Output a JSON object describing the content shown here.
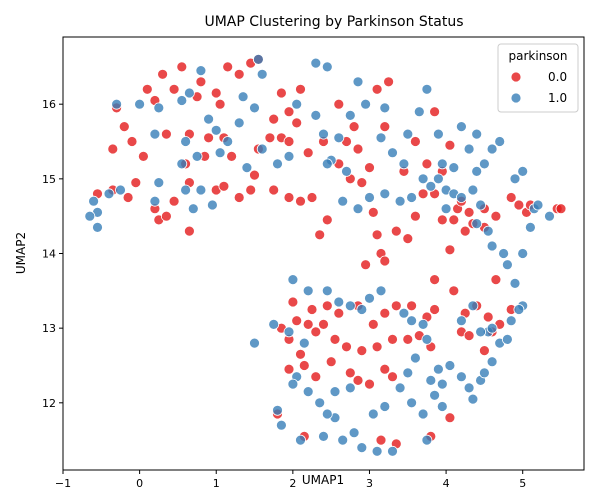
{
  "chart_data": {
    "type": "scatter",
    "title": "UMAP Clustering by Parkinson Status",
    "xlabel": "UMAP1",
    "ylabel": "UMAP2",
    "xlim": [
      -1,
      5.8
    ],
    "ylim": [
      11.1,
      16.9
    ],
    "xticks": [
      -1,
      0,
      1,
      2,
      3,
      4,
      5
    ],
    "yticks": [
      12,
      13,
      14,
      15,
      16
    ],
    "grid": false,
    "legend": {
      "title": "parkinson",
      "placement": "top-right"
    },
    "series": [
      {
        "name": "0.0",
        "color": "#e41a1c",
        "points": [
          [
            0.3,
            16.4
          ],
          [
            0.55,
            16.5
          ],
          [
            0.8,
            16.3
          ],
          [
            1.0,
            16.15
          ],
          [
            1.15,
            16.5
          ],
          [
            1.3,
            16.4
          ],
          [
            1.45,
            16.55
          ],
          [
            1.55,
            16.6
          ],
          [
            0.1,
            16.2
          ],
          [
            0.45,
            16.2
          ],
          [
            0.75,
            16.1
          ],
          [
            1.05,
            16.0
          ],
          [
            0.2,
            16.05
          ],
          [
            -0.3,
            15.95
          ],
          [
            -0.2,
            15.7
          ],
          [
            -0.1,
            15.5
          ],
          [
            0.05,
            15.3
          ],
          [
            -0.35,
            15.4
          ],
          [
            0.35,
            15.6
          ],
          [
            0.65,
            15.6
          ],
          [
            0.9,
            15.55
          ],
          [
            1.1,
            15.55
          ],
          [
            0.6,
            15.2
          ],
          [
            0.85,
            15.3
          ],
          [
            1.2,
            15.3
          ],
          [
            1.55,
            15.4
          ],
          [
            1.7,
            15.55
          ],
          [
            1.85,
            15.55
          ],
          [
            1.95,
            15.5
          ],
          [
            1.75,
            15.8
          ],
          [
            2.05,
            15.75
          ],
          [
            1.85,
            16.15
          ],
          [
            2.1,
            16.2
          ],
          [
            1.95,
            15.9
          ],
          [
            -0.55,
            14.8
          ],
          [
            -0.35,
            14.85
          ],
          [
            -0.15,
            14.75
          ],
          [
            -0.05,
            14.95
          ],
          [
            0.2,
            14.6
          ],
          [
            0.25,
            14.45
          ],
          [
            0.35,
            14.5
          ],
          [
            0.45,
            14.7
          ],
          [
            0.65,
            14.95
          ],
          [
            0.65,
            14.3
          ],
          [
            1.0,
            14.85
          ],
          [
            1.1,
            14.9
          ],
          [
            1.3,
            14.75
          ],
          [
            1.45,
            14.85
          ],
          [
            1.5,
            15.05
          ],
          [
            1.75,
            14.85
          ],
          [
            1.95,
            14.75
          ],
          [
            2.1,
            14.7
          ],
          [
            2.25,
            14.75
          ],
          [
            2.2,
            15.35
          ],
          [
            2.4,
            15.5
          ],
          [
            2.6,
            15.2
          ],
          [
            2.7,
            15.5
          ],
          [
            2.75,
            15.0
          ],
          [
            2.85,
            15.4
          ],
          [
            2.9,
            14.95
          ],
          [
            3.0,
            15.15
          ],
          [
            3.05,
            14.55
          ],
          [
            3.1,
            14.25
          ],
          [
            3.15,
            14.0
          ],
          [
            3.2,
            13.9
          ],
          [
            2.95,
            13.85
          ],
          [
            3.35,
            14.3
          ],
          [
            3.6,
            14.5
          ],
          [
            3.7,
            14.8
          ],
          [
            3.85,
            14.8
          ],
          [
            3.95,
            14.45
          ],
          [
            4.1,
            14.45
          ],
          [
            4.15,
            14.6
          ],
          [
            4.2,
            14.7
          ],
          [
            4.25,
            14.3
          ],
          [
            4.3,
            14.55
          ],
          [
            3.5,
            14.2
          ],
          [
            2.45,
            14.45
          ],
          [
            2.35,
            14.25
          ],
          [
            3.1,
            16.2
          ],
          [
            3.25,
            16.3
          ],
          [
            3.2,
            15.7
          ],
          [
            3.45,
            15.1
          ],
          [
            3.6,
            15.5
          ],
          [
            3.75,
            15.2
          ],
          [
            3.85,
            15.9
          ],
          [
            4.05,
            15.45
          ],
          [
            3.95,
            15.1
          ],
          [
            2.8,
            15.7
          ],
          [
            2.6,
            16.0
          ],
          [
            4.05,
            14.05
          ],
          [
            4.1,
            13.5
          ],
          [
            3.85,
            13.65
          ],
          [
            4.35,
            14.4
          ],
          [
            4.5,
            14.35
          ],
          [
            4.65,
            14.5
          ],
          [
            4.85,
            14.75
          ],
          [
            4.95,
            14.65
          ],
          [
            5.05,
            14.55
          ],
          [
            5.1,
            14.65
          ],
          [
            5.45,
            14.6
          ],
          [
            5.5,
            14.6
          ],
          [
            4.5,
            14.6
          ],
          [
            2.0,
            13.35
          ],
          [
            2.25,
            13.25
          ],
          [
            2.45,
            13.3
          ],
          [
            2.6,
            13.2
          ],
          [
            2.85,
            13.3
          ],
          [
            3.05,
            13.05
          ],
          [
            3.2,
            13.2
          ],
          [
            3.35,
            13.3
          ],
          [
            3.55,
            13.3
          ],
          [
            3.75,
            13.15
          ],
          [
            3.85,
            13.25
          ],
          [
            3.65,
            12.9
          ],
          [
            3.8,
            12.75
          ],
          [
            3.5,
            12.85
          ],
          [
            3.3,
            12.85
          ],
          [
            3.1,
            12.75
          ],
          [
            2.9,
            12.7
          ],
          [
            2.7,
            12.75
          ],
          [
            2.55,
            12.85
          ],
          [
            2.4,
            13.05
          ],
          [
            2.3,
            12.95
          ],
          [
            2.2,
            13.05
          ],
          [
            2.05,
            13.1
          ],
          [
            1.85,
            13.0
          ],
          [
            1.95,
            12.85
          ],
          [
            2.1,
            12.65
          ],
          [
            2.15,
            12.5
          ],
          [
            1.95,
            12.45
          ],
          [
            2.3,
            12.35
          ],
          [
            2.5,
            12.55
          ],
          [
            2.75,
            12.4
          ],
          [
            2.85,
            12.3
          ],
          [
            3.0,
            12.25
          ],
          [
            3.2,
            12.45
          ],
          [
            3.3,
            12.35
          ],
          [
            4.2,
            12.95
          ],
          [
            4.3,
            12.9
          ],
          [
            4.25,
            13.2
          ],
          [
            4.4,
            13.3
          ],
          [
            4.55,
            13.15
          ],
          [
            4.7,
            13.05
          ],
          [
            4.85,
            13.25
          ],
          [
            4.6,
            12.95
          ],
          [
            4.5,
            12.7
          ],
          [
            4.65,
            13.65
          ],
          [
            1.8,
            11.85
          ],
          [
            2.15,
            11.55
          ],
          [
            3.15,
            11.5
          ],
          [
            3.35,
            11.45
          ],
          [
            3.8,
            11.55
          ],
          [
            4.05,
            11.8
          ]
        ]
      },
      {
        "name": "1.0",
        "color": "#377eb8",
        "points": [
          [
            -0.3,
            16.0
          ],
          [
            0.0,
            16.0
          ],
          [
            0.25,
            15.95
          ],
          [
            0.55,
            16.05
          ],
          [
            0.65,
            16.15
          ],
          [
            0.9,
            15.8
          ],
          [
            1.0,
            15.65
          ],
          [
            1.15,
            15.5
          ],
          [
            1.3,
            15.75
          ],
          [
            1.5,
            15.95
          ],
          [
            1.6,
            16.4
          ],
          [
            1.55,
            16.6
          ],
          [
            1.35,
            16.1
          ],
          [
            0.8,
            16.45
          ],
          [
            0.2,
            15.6
          ],
          [
            -0.6,
            14.7
          ],
          [
            -0.55,
            14.55
          ],
          [
            -0.65,
            14.5
          ],
          [
            -0.55,
            14.35
          ],
          [
            -0.4,
            14.8
          ],
          [
            -0.25,
            14.85
          ],
          [
            0.2,
            14.7
          ],
          [
            0.25,
            14.95
          ],
          [
            0.55,
            15.2
          ],
          [
            0.6,
            14.85
          ],
          [
            0.7,
            14.6
          ],
          [
            0.8,
            14.85
          ],
          [
            0.95,
            14.65
          ],
          [
            0.75,
            15.3
          ],
          [
            0.6,
            15.5
          ],
          [
            1.05,
            15.35
          ],
          [
            1.4,
            15.15
          ],
          [
            1.6,
            15.4
          ],
          [
            1.8,
            15.2
          ],
          [
            1.95,
            15.3
          ],
          [
            2.3,
            16.55
          ],
          [
            2.45,
            16.5
          ],
          [
            2.05,
            16.0
          ],
          [
            2.3,
            15.85
          ],
          [
            2.4,
            15.6
          ],
          [
            2.5,
            15.25
          ],
          [
            2.6,
            15.55
          ],
          [
            2.75,
            15.85
          ],
          [
            2.85,
            16.3
          ],
          [
            2.95,
            16.0
          ],
          [
            3.2,
            15.95
          ],
          [
            3.15,
            15.55
          ],
          [
            3.3,
            15.35
          ],
          [
            3.45,
            15.2
          ],
          [
            3.5,
            15.6
          ],
          [
            3.65,
            15.9
          ],
          [
            3.75,
            16.2
          ],
          [
            3.9,
            15.6
          ],
          [
            3.95,
            15.2
          ],
          [
            3.7,
            15.0
          ],
          [
            3.55,
            14.75
          ],
          [
            3.4,
            14.7
          ],
          [
            3.2,
            14.8
          ],
          [
            3.0,
            14.75
          ],
          [
            2.85,
            14.6
          ],
          [
            2.65,
            14.7
          ],
          [
            2.45,
            15.2
          ],
          [
            2.7,
            15.1
          ],
          [
            3.8,
            14.9
          ],
          [
            3.9,
            15.0
          ],
          [
            4.0,
            14.85
          ],
          [
            4.1,
            14.8
          ],
          [
            4.2,
            14.75
          ],
          [
            4.35,
            14.85
          ],
          [
            4.45,
            14.65
          ],
          [
            4.4,
            14.4
          ],
          [
            4.55,
            14.3
          ],
          [
            4.6,
            14.1
          ],
          [
            4.75,
            14.0
          ],
          [
            4.8,
            13.85
          ],
          [
            4.9,
            13.6
          ],
          [
            5.0,
            13.3
          ],
          [
            5.0,
            14.0
          ],
          [
            5.1,
            14.35
          ],
          [
            5.15,
            14.6
          ],
          [
            5.2,
            14.65
          ],
          [
            5.35,
            14.5
          ],
          [
            4.9,
            15.0
          ],
          [
            5.0,
            15.1
          ],
          [
            4.6,
            15.4
          ],
          [
            4.4,
            15.6
          ],
          [
            4.2,
            15.7
          ],
          [
            4.3,
            15.4
          ],
          [
            4.4,
            15.1
          ],
          [
            4.5,
            15.2
          ],
          [
            4.7,
            15.5
          ],
          [
            4.1,
            15.15
          ],
          [
            4.0,
            14.6
          ],
          [
            2.0,
            13.65
          ],
          [
            2.2,
            13.5
          ],
          [
            2.45,
            13.5
          ],
          [
            2.6,
            13.35
          ],
          [
            2.75,
            13.3
          ],
          [
            2.9,
            13.25
          ],
          [
            3.0,
            13.4
          ],
          [
            3.15,
            13.5
          ],
          [
            3.45,
            13.2
          ],
          [
            3.55,
            13.1
          ],
          [
            3.7,
            13.05
          ],
          [
            3.75,
            12.85
          ],
          [
            3.6,
            12.6
          ],
          [
            3.5,
            12.4
          ],
          [
            3.4,
            12.2
          ],
          [
            3.55,
            12.0
          ],
          [
            3.7,
            11.85
          ],
          [
            3.85,
            12.1
          ],
          [
            3.95,
            11.95
          ],
          [
            3.8,
            12.3
          ],
          [
            3.9,
            12.45
          ],
          [
            4.05,
            12.5
          ],
          [
            3.95,
            12.25
          ],
          [
            1.75,
            13.05
          ],
          [
            1.5,
            12.8
          ],
          [
            1.95,
            12.95
          ],
          [
            2.15,
            12.8
          ],
          [
            2.05,
            12.35
          ],
          [
            2.2,
            12.15
          ],
          [
            2.0,
            12.25
          ],
          [
            2.35,
            12.0
          ],
          [
            2.55,
            12.15
          ],
          [
            2.75,
            12.2
          ],
          [
            3.05,
            11.85
          ],
          [
            3.2,
            11.95
          ],
          [
            4.2,
            12.35
          ],
          [
            4.3,
            12.2
          ],
          [
            4.35,
            12.05
          ],
          [
            4.45,
            12.3
          ],
          [
            4.5,
            12.4
          ],
          [
            4.6,
            12.55
          ],
          [
            4.7,
            12.8
          ],
          [
            4.8,
            12.85
          ],
          [
            4.55,
            12.95
          ],
          [
            4.85,
            13.1
          ],
          [
            4.95,
            13.25
          ],
          [
            4.6,
            13.0
          ],
          [
            4.45,
            12.95
          ],
          [
            4.35,
            13.3
          ],
          [
            4.2,
            13.1
          ],
          [
            1.8,
            11.9
          ],
          [
            1.85,
            11.7
          ],
          [
            2.1,
            11.5
          ],
          [
            2.4,
            11.55
          ],
          [
            2.55,
            11.8
          ],
          [
            2.65,
            11.5
          ],
          [
            2.8,
            11.6
          ],
          [
            2.9,
            11.4
          ],
          [
            3.1,
            11.35
          ],
          [
            3.3,
            11.35
          ],
          [
            3.75,
            11.5
          ],
          [
            2.45,
            11.85
          ]
        ]
      }
    ]
  }
}
